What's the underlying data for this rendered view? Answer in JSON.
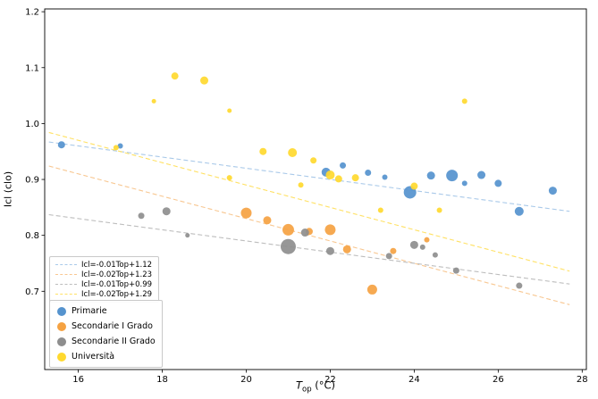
{
  "chart_data": {
    "type": "scatter",
    "title": "",
    "ylabel": "Icl (clo)",
    "xlabel": {
      "symbol": "T",
      "subscript": "op",
      "unit": " (°C)"
    },
    "xlim": [
      15.2,
      28.1
    ],
    "ylim": [
      0.56,
      1.205
    ],
    "xticks": [
      16,
      18,
      20,
      22,
      24,
      26,
      28
    ],
    "yticks": [
      0.7,
      0.8,
      0.9,
      1.0,
      1.1,
      1.2
    ],
    "grid": false,
    "legend_position": "lower left",
    "series": [
      {
        "name": "Primarie",
        "color": "#5593CE",
        "points": [
          [
            15.6,
            0.962,
            4
          ],
          [
            17.0,
            0.96,
            3
          ],
          [
            21.9,
            0.913,
            5
          ],
          [
            22.3,
            0.925,
            3.5
          ],
          [
            22.9,
            0.912,
            3.5
          ],
          [
            23.3,
            0.904,
            3
          ],
          [
            23.9,
            0.877,
            7
          ],
          [
            24.4,
            0.907,
            4.5
          ],
          [
            24.9,
            0.907,
            6.5
          ],
          [
            25.2,
            0.893,
            3
          ],
          [
            25.6,
            0.908,
            4.5
          ],
          [
            26.0,
            0.893,
            4
          ],
          [
            26.5,
            0.843,
            5
          ],
          [
            27.3,
            0.88,
            4.5
          ]
        ]
      },
      {
        "name": "Secondarie I Grado",
        "color": "#F5A242",
        "points": [
          [
            20.0,
            0.84,
            6
          ],
          [
            20.5,
            0.827,
            4.5
          ],
          [
            21.0,
            0.81,
            6.5
          ],
          [
            21.5,
            0.807,
            4
          ],
          [
            22.0,
            0.81,
            6
          ],
          [
            22.4,
            0.775,
            4.5
          ],
          [
            23.0,
            0.703,
            5.5
          ],
          [
            23.5,
            0.772,
            3.5
          ],
          [
            24.3,
            0.792,
            3
          ]
        ]
      },
      {
        "name": "Secondarie II Grado",
        "color": "#8E8E8E",
        "points": [
          [
            17.5,
            0.835,
            3.5
          ],
          [
            18.1,
            0.843,
            4.5
          ],
          [
            18.6,
            0.8,
            2.5
          ],
          [
            21.0,
            0.78,
            8.5
          ],
          [
            21.4,
            0.805,
            4.5
          ],
          [
            22.0,
            0.772,
            4.5
          ],
          [
            23.4,
            0.763,
            3.5
          ],
          [
            24.0,
            0.783,
            4.5
          ],
          [
            24.2,
            0.779,
            3
          ],
          [
            24.5,
            0.765,
            3
          ],
          [
            25.0,
            0.737,
            3.5
          ],
          [
            26.5,
            0.71,
            3.5
          ]
        ]
      },
      {
        "name": "Università",
        "color": "#FFD92F",
        "points": [
          [
            16.9,
            0.957,
            3
          ],
          [
            17.8,
            1.04,
            2.5
          ],
          [
            18.3,
            1.085,
            4
          ],
          [
            19.0,
            1.077,
            4.5
          ],
          [
            19.6,
            1.023,
            2.5
          ],
          [
            19.6,
            0.903,
            3
          ],
          [
            20.4,
            0.95,
            4
          ],
          [
            21.1,
            0.948,
            5
          ],
          [
            21.3,
            0.89,
            3
          ],
          [
            21.6,
            0.934,
            3.5
          ],
          [
            22.0,
            0.908,
            5
          ],
          [
            22.2,
            0.901,
            4
          ],
          [
            22.6,
            0.903,
            4
          ],
          [
            23.2,
            0.845,
            3
          ],
          [
            24.0,
            0.888,
            4
          ],
          [
            24.6,
            0.845,
            3
          ],
          [
            25.2,
            1.04,
            3
          ]
        ]
      }
    ],
    "trend_lines": [
      {
        "label": "Icl=-0.01Top+1.12",
        "slope": -0.01,
        "intercept": 1.12,
        "color": "#A9C9E9",
        "x_range": [
          15.3,
          27.7
        ]
      },
      {
        "label": "Icl=-0.02Top+1.23",
        "slope": -0.02,
        "intercept": 1.23,
        "color": "#F8C791",
        "x_range": [
          15.3,
          27.7
        ]
      },
      {
        "label": "Icl=-0.01Top+0.99",
        "slope": -0.01,
        "intercept": 0.99,
        "color": "#BDBDBD",
        "x_range": [
          15.3,
          27.7
        ]
      },
      {
        "label": "Icl=-0.02Top+1.29",
        "slope": -0.02,
        "intercept": 1.29,
        "color": "#FFE164",
        "x_range": [
          15.3,
          27.7
        ]
      }
    ]
  }
}
